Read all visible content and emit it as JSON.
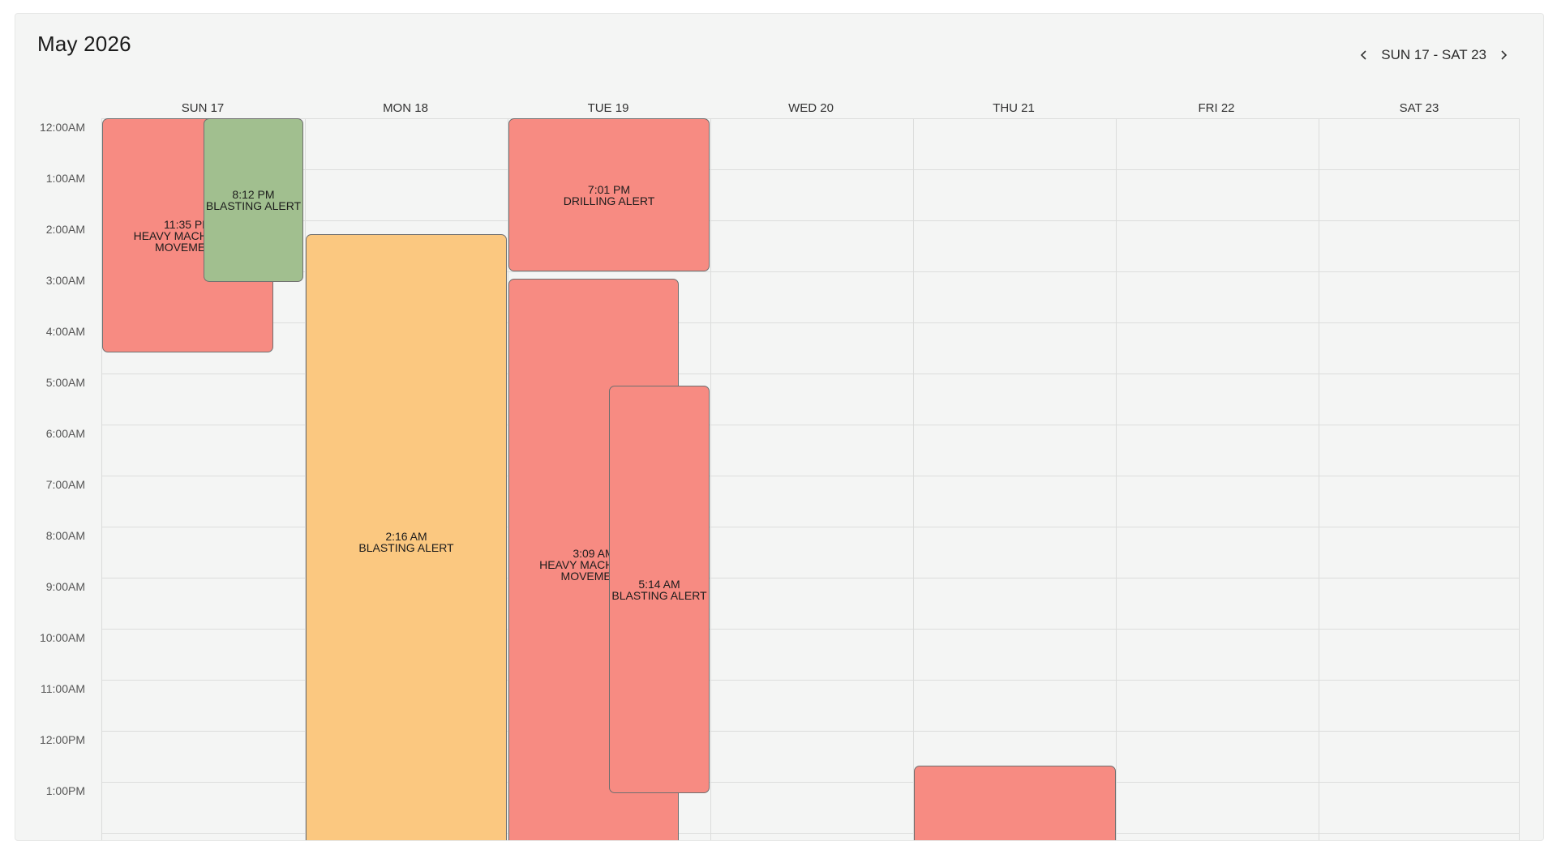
{
  "calendar": {
    "month_title": "May 2026",
    "week_range": "SUN 17 - SAT 23",
    "days": [
      "SUN 17",
      "MON 18",
      "TUE 19",
      "WED 20",
      "THU 21",
      "FRI 22",
      "SAT 23"
    ],
    "hours": [
      "12:00AM",
      "1:00AM",
      "2:00AM",
      "3:00AM",
      "4:00AM",
      "5:00AM",
      "6:00AM",
      "7:00AM",
      "8:00AM",
      "9:00AM",
      "10:00AM",
      "11:00AM",
      "12:00PM",
      "1:00PM"
    ]
  },
  "events": [
    {
      "time": "11:35 PM",
      "label": "HEAVY MACHINERY\nMOVEMENT",
      "color": "#f78b82"
    },
    {
      "time": "8:12 PM",
      "label": "BLASTING ALERT",
      "color": "#a1bf8f"
    },
    {
      "time": "2:16 AM",
      "label": "BLASTING ALERT",
      "color": "#fbc880"
    },
    {
      "time": "7:01 PM",
      "label": "DRILLING ALERT",
      "color": "#f78b82"
    },
    {
      "time": "3:09 AM",
      "label": "HEAVY MACHINERY\nMOVEMENT",
      "color": "#f78b82"
    },
    {
      "time": "5:14 AM",
      "label": "BLASTING ALERT",
      "color": "#f78b82"
    },
    {
      "time": "",
      "label": "",
      "color": "#f78b82"
    }
  ],
  "icons": {
    "prev": "chevron-left-icon",
    "next": "chevron-right-icon"
  }
}
